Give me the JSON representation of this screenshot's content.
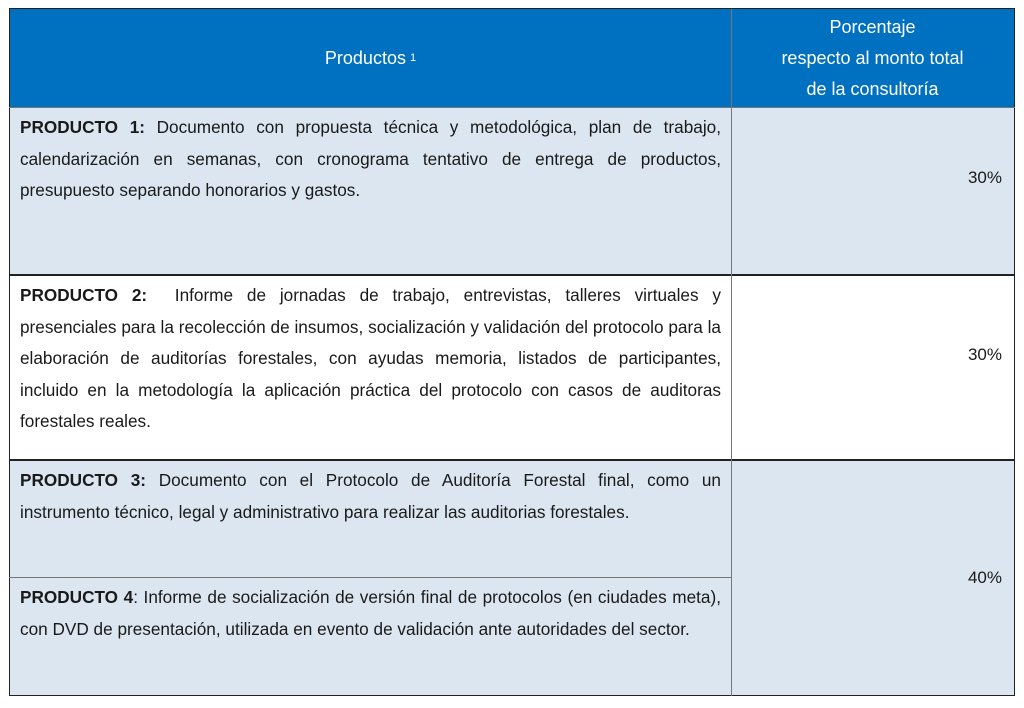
{
  "header": {
    "productos": "Productos",
    "footnote": "1",
    "porcentaje_lines": [
      "Porcentaje",
      "respecto al monto total",
      "de la consultoría"
    ]
  },
  "rows": [
    {
      "label": "PRODUCTO 1:",
      "text": " Documento con propuesta técnica y metodológica, plan de trabajo, calendarización en semanas, con cronograma tentativo de entrega de productos, presupuesto separando honorarios y gastos.",
      "percent": "30%"
    },
    {
      "label": "PRODUCTO 2:",
      "text": "  Informe de jornadas de trabajo, entrevistas, talleres virtuales y presenciales para la recolección de insumos, socialización y validación del protocolo para la elaboración de auditorías forestales, con ayudas memoria, listados de participantes, incluido en la metodología la aplicación práctica del protocolo con casos de auditoras forestales reales.",
      "percent": "30%"
    },
    {
      "label": "PRODUCTO 3:",
      "text": " Documento con el Protocolo de Auditoría Forestal final, como un instrumento técnico, legal y administrativo para realizar las auditorias forestales.",
      "percent": "40%"
    },
    {
      "label": "PRODUCTO 4",
      "text": ": Informe de socialización de versión final de protocolos (en ciudades meta), con DVD de presentación, utilizada en evento de validación ante autoridades del sector."
    }
  ],
  "colors": {
    "header_bg": "#0070C0",
    "row_shade": "#DCE6F1"
  }
}
